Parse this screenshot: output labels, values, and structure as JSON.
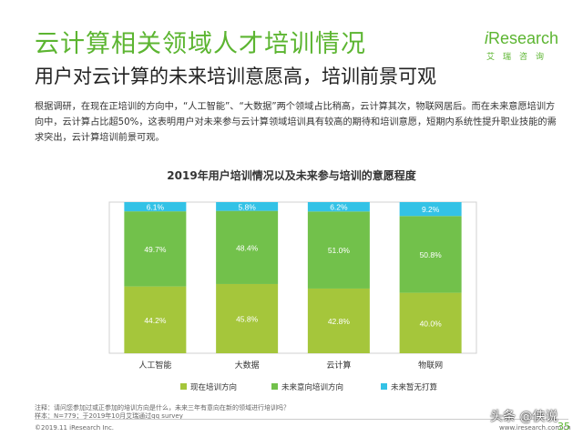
{
  "header": {
    "title": "云计算相关领域人才培训情况",
    "subtitle": "用户对云计算的未来培训意愿高，培训前景可观"
  },
  "logo": {
    "brand_i": "i",
    "brand_rest": "Research",
    "cn": "艾瑞咨询"
  },
  "body_text": "根据调研，在现在正培训的方向中，“人工智能”、“大数据”两个领域占比稍高，云计算其次，物联网居后。而在未来意愿培训方向中，云计算占比超50%，这表明用户对未来参与云计算领域培训具有较高的期待和培训意愿，短期内系统性提升职业技能的需求突出，云计算培训前景可观。",
  "chart_data": {
    "type": "bar",
    "stacked": true,
    "title": "2019年用户培训情况以及未来参与培训的意愿程度",
    "categories": [
      "人工智能",
      "大数据",
      "云计算",
      "物联网"
    ],
    "series": [
      {
        "name": "现在培训方向",
        "values": [
          44.2,
          45.8,
          42.8,
          40.0
        ],
        "labels": [
          "44.2%",
          "45.8%",
          "42.8%",
          "40.0%"
        ],
        "color": "#a5c63b"
      },
      {
        "name": "未来意向培训方向",
        "values": [
          49.7,
          48.4,
          51.0,
          50.8
        ],
        "labels": [
          "49.7%",
          "48.4%",
          "51.0%",
          "50.8%"
        ],
        "color": "#72c14b"
      },
      {
        "name": "未来暂无打算",
        "values": [
          6.1,
          5.8,
          6.2,
          9.2
        ],
        "labels": [
          "6.1%",
          "5.8%",
          "6.2%",
          "9.2%"
        ],
        "color": "#33c2e6"
      }
    ],
    "ylim": [
      0,
      100
    ],
    "legend_position": "bottom",
    "grid": false
  },
  "footer": {
    "note_line1": "注释：请问您参加过或正参加的培训方向是什么，未来三年有意向在新的领域进行培训吗？",
    "note_line2": "样本：N=779；于2019年10月艾瑞通过qq survey",
    "copyright": "©2019.11 iResearch Inc.",
    "website": "www.iresearch.com.cn",
    "page": "35",
    "watermark": "头条 @侠说"
  }
}
